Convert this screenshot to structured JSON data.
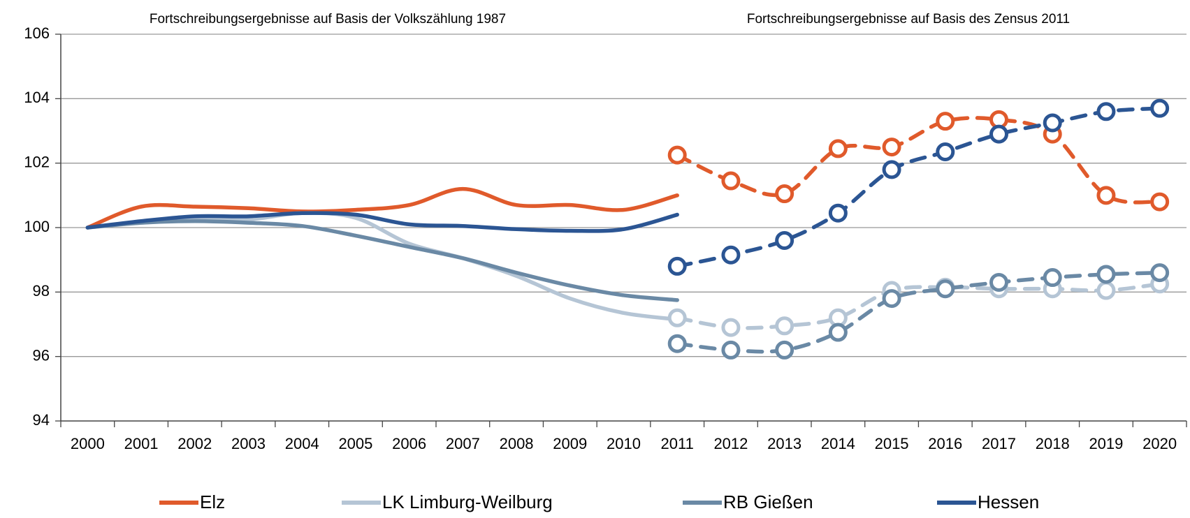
{
  "chart_data": {
    "type": "line",
    "section_titles": [
      "Fortschreibungsergebnisse auf Basis der Volkszählung 1987",
      "Fortschreibungsergebnisse auf Basis des Zensus 2011"
    ],
    "categories": [
      "2000",
      "2001",
      "2002",
      "2003",
      "2004",
      "2005",
      "2006",
      "2007",
      "2008",
      "2009",
      "2010",
      "2011",
      "2012",
      "2013",
      "2014",
      "2015",
      "2016",
      "2017",
      "2018",
      "2019",
      "2020"
    ],
    "ylim": [
      94,
      106
    ],
    "yticks": [
      94,
      96,
      98,
      100,
      102,
      104,
      106
    ],
    "grid": true,
    "legend": "bottom",
    "series": [
      {
        "name": "Elz",
        "color": "#e05a2b",
        "values": [
          100,
          100.65,
          100.65,
          100.6,
          100.5,
          100.55,
          100.7,
          101.2,
          100.7,
          100.7,
          100.55,
          101.0,
          null,
          null,
          null,
          null,
          null,
          null,
          null,
          null,
          null
        ],
        "values_zensus": [
          null,
          null,
          null,
          null,
          null,
          null,
          null,
          null,
          null,
          null,
          null,
          102.25,
          101.45,
          101.05,
          102.45,
          102.5,
          103.3,
          103.35,
          102.9,
          101.0,
          100.8
        ]
      },
      {
        "name": "LK Limburg-Weilburg",
        "color": "#b5c5d5",
        "values": [
          100,
          100.15,
          100.25,
          100.25,
          100.45,
          100.3,
          99.5,
          99.05,
          98.5,
          97.8,
          97.35,
          97.15,
          null,
          null,
          null,
          null,
          null,
          null,
          null,
          null,
          null
        ],
        "values_zensus": [
          null,
          null,
          null,
          null,
          null,
          null,
          null,
          null,
          null,
          null,
          null,
          97.2,
          96.9,
          96.95,
          97.2,
          98.05,
          98.15,
          98.1,
          98.1,
          98.05,
          98.25
        ]
      },
      {
        "name": "RB Gießen",
        "color": "#6a89a5",
        "values": [
          100,
          100.15,
          100.2,
          100.15,
          100.05,
          99.75,
          99.4,
          99.05,
          98.6,
          98.2,
          97.9,
          97.75,
          null,
          null,
          null,
          null,
          null,
          null,
          null,
          null,
          null
        ],
        "values_zensus": [
          null,
          null,
          null,
          null,
          null,
          null,
          null,
          null,
          null,
          null,
          null,
          96.4,
          96.2,
          96.2,
          96.75,
          97.8,
          98.1,
          98.3,
          98.45,
          98.55,
          98.6
        ]
      },
      {
        "name": "Hessen",
        "color": "#2b5593",
        "values": [
          100,
          100.2,
          100.35,
          100.35,
          100.45,
          100.4,
          100.1,
          100.05,
          99.95,
          99.9,
          99.95,
          100.4,
          null,
          null,
          null,
          null,
          null,
          null,
          null,
          null,
          null
        ],
        "values_zensus": [
          null,
          null,
          null,
          null,
          null,
          null,
          null,
          null,
          null,
          null,
          null,
          98.8,
          99.15,
          99.6,
          100.45,
          101.8,
          102.35,
          102.9,
          103.25,
          103.6,
          103.7
        ]
      }
    ]
  }
}
